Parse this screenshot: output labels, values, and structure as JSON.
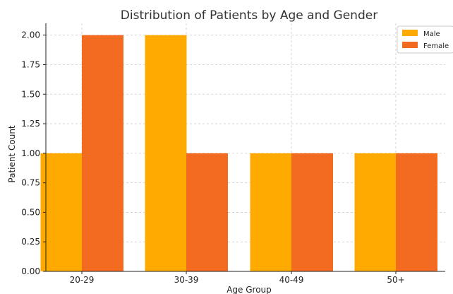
{
  "chart_data": {
    "type": "bar",
    "title": "Distribution of Patients by Age and Gender",
    "xlabel": "Age Group",
    "ylabel": "Patient Count",
    "categories": [
      "20-29",
      "30-39",
      "40-49",
      "50+"
    ],
    "series": [
      {
        "name": "Male",
        "values": [
          1,
          2,
          1,
          1
        ],
        "color": "#FFAA00"
      },
      {
        "name": "Female",
        "values": [
          2,
          1,
          1,
          1
        ],
        "color": "#F26B21"
      }
    ],
    "ylim": [
      0,
      2.1
    ],
    "yticks": [
      "0.00",
      "0.25",
      "0.50",
      "0.75",
      "1.00",
      "1.25",
      "1.50",
      "1.75",
      "2.00"
    ],
    "grid": true,
    "legend_position": "top-right"
  }
}
